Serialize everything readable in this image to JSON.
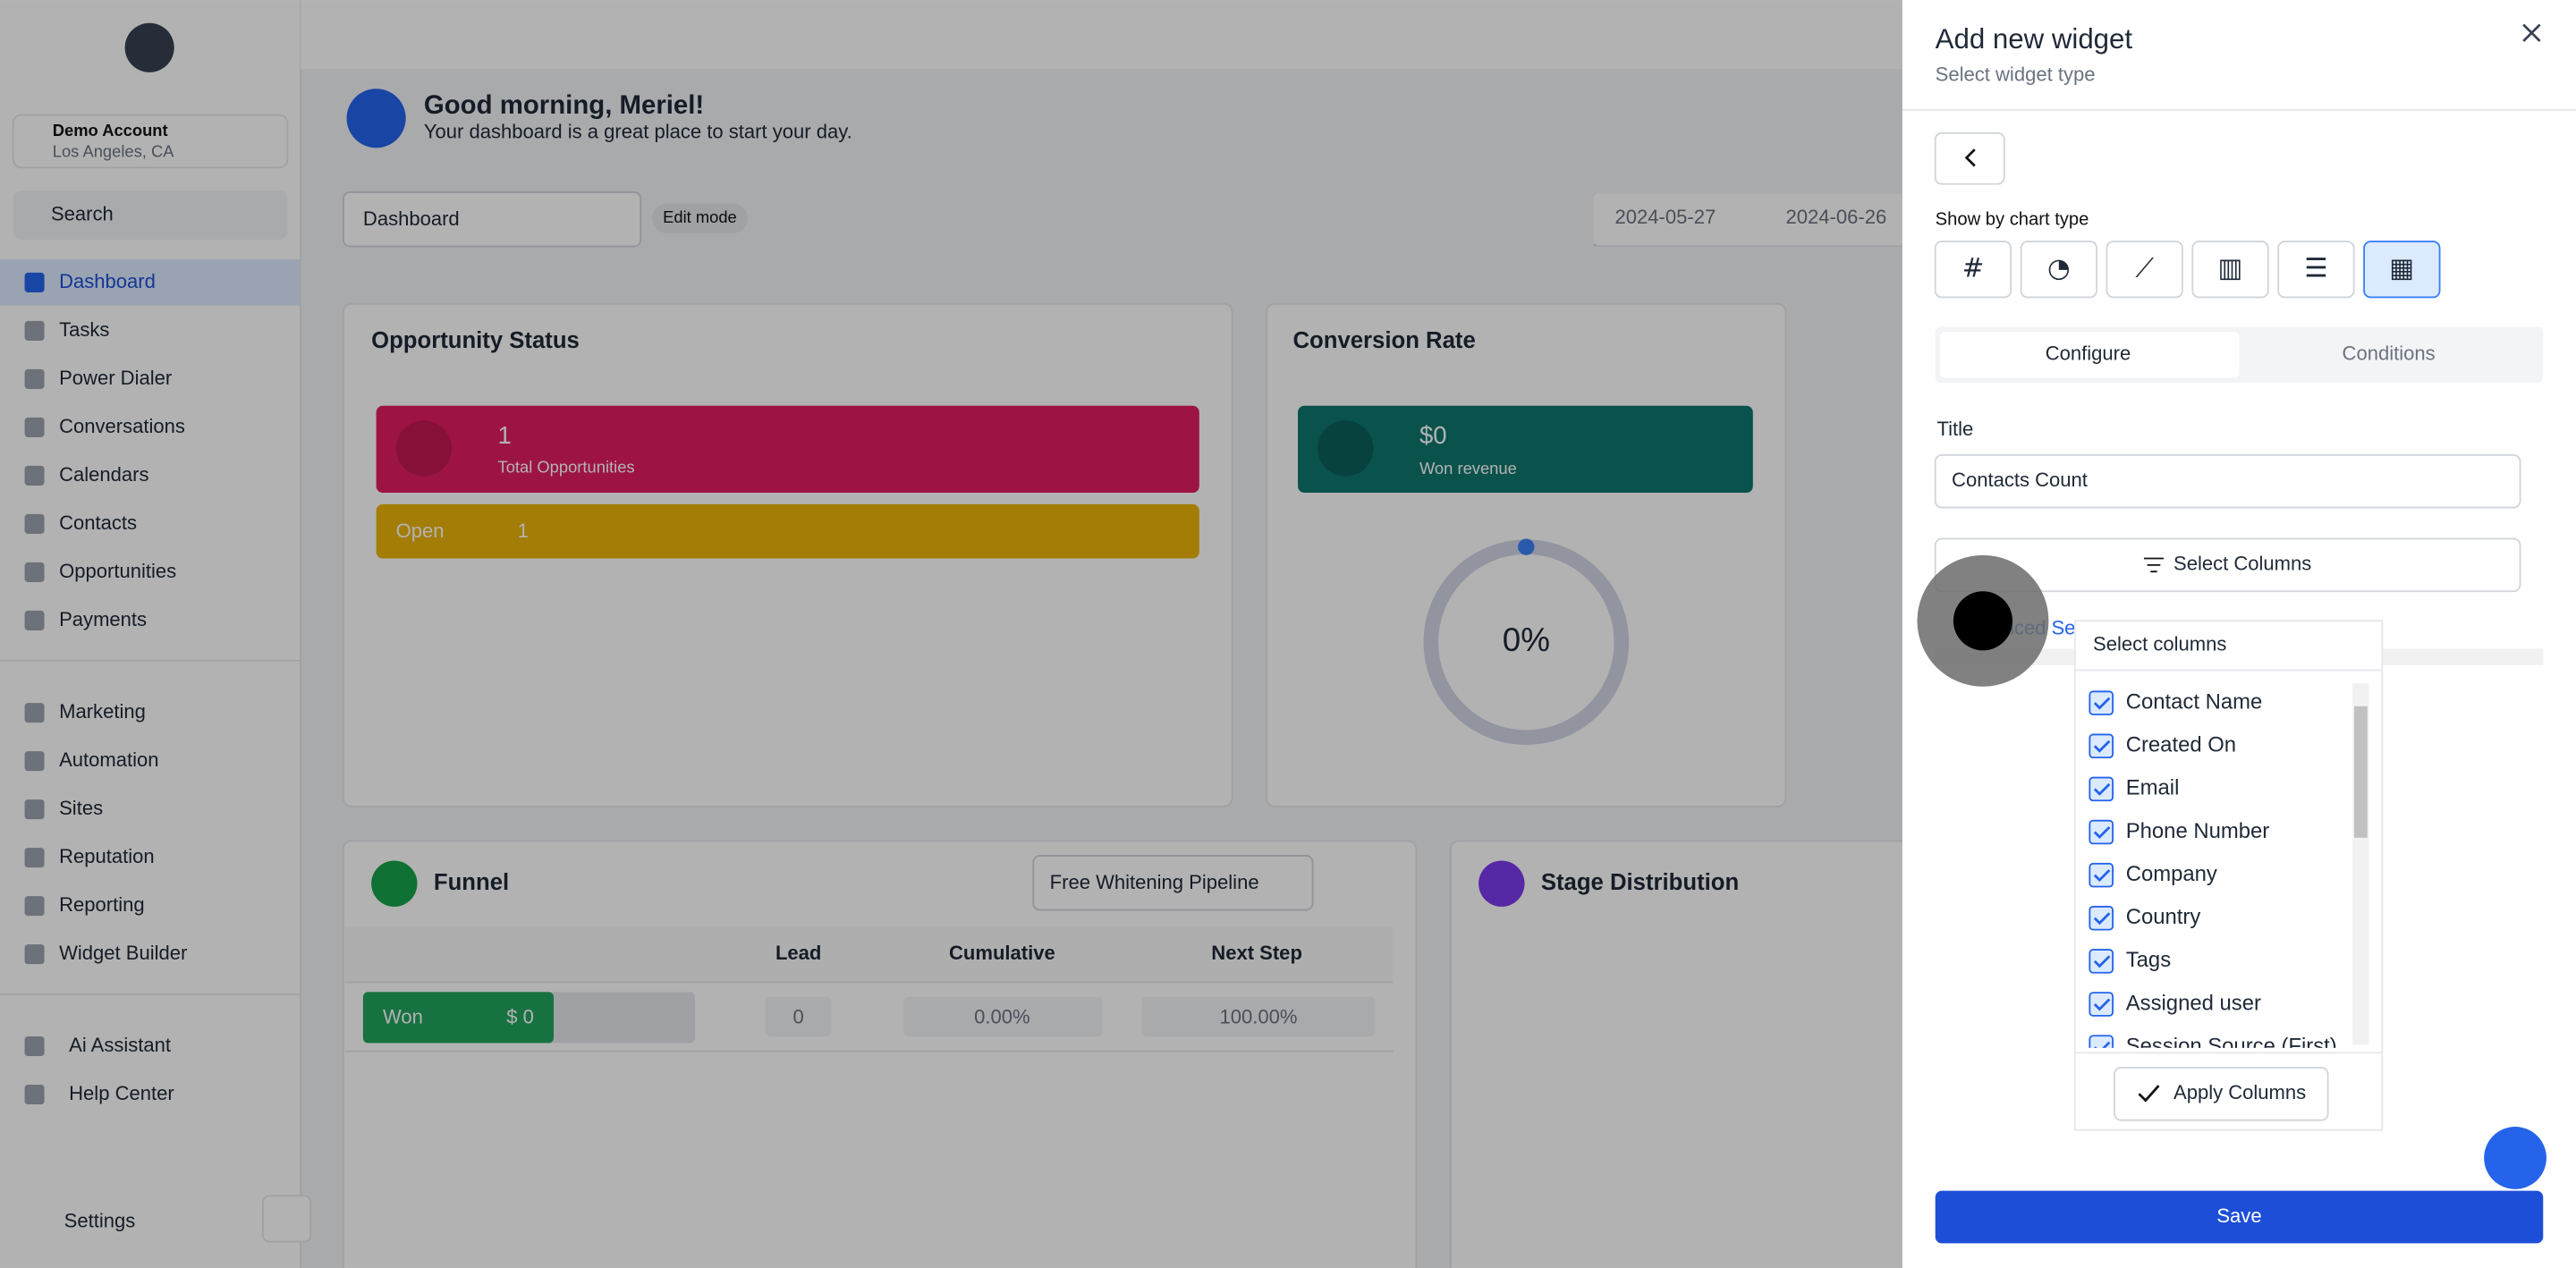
{
  "sidebar": {
    "account": {
      "name": "Demo Account",
      "location": "Los Angeles, CA"
    },
    "search": "Search",
    "nav": [
      [
        "Dashboard",
        "Tasks",
        "Power Dialer",
        "Conversations",
        "Calendars",
        "Contacts",
        "Opportunities",
        "Payments"
      ],
      [
        "Marketing",
        "Automation",
        "Sites",
        "Reputation",
        "Reporting",
        "Widget Builder"
      ],
      [
        "Ai Assistant",
        "Help Center"
      ]
    ],
    "settings": "Settings"
  },
  "header": {
    "greeting": "Good morning, Meriel!",
    "subtitle": "Your dashboard is a great place to start your day."
  },
  "toolbar": {
    "dashboard": "Dashboard",
    "edit_mode": "Edit mode",
    "date_from": "2024-05-27",
    "date_to": "2024-06-26"
  },
  "widgets": {
    "opportunity_status": {
      "title": "Opportunity Status",
      "total": "1",
      "total_label": "Total Opportunities",
      "open_label": "Open",
      "open_value": "1"
    },
    "conversion_rate": {
      "title": "Conversion Rate",
      "revenue": "$0",
      "revenue_label": "Won revenue",
      "rate": "0%"
    },
    "funnel": {
      "title": "Funnel",
      "pipeline": "Free Whitening Pipeline",
      "columns": [
        "Lead",
        "Cumulative",
        "Next Step"
      ],
      "row": {
        "stage": "Won",
        "amount": "$ 0",
        "lead": "0",
        "cumulative": "0.00%",
        "next_step": "100.00%"
      }
    },
    "stage_distribution": {
      "title": "Stage Distribution"
    }
  },
  "panel": {
    "title": "Add new widget",
    "subtitle": "Select widget type",
    "chart_type_label": "Show by chart type",
    "tabs": [
      "Configure",
      "Conditions"
    ],
    "field_label": "Title",
    "field_value": "Contacts Count",
    "select_columns": "Select Columns",
    "advanced": "Advanced Settings",
    "save": "Save"
  },
  "dropdown": {
    "title": "Select columns",
    "items": [
      "Contact Name",
      "Created On",
      "Email",
      "Phone Number",
      "Company",
      "Country",
      "Tags",
      "Assigned user",
      "Session Source (First)"
    ],
    "apply": "Apply Columns"
  }
}
